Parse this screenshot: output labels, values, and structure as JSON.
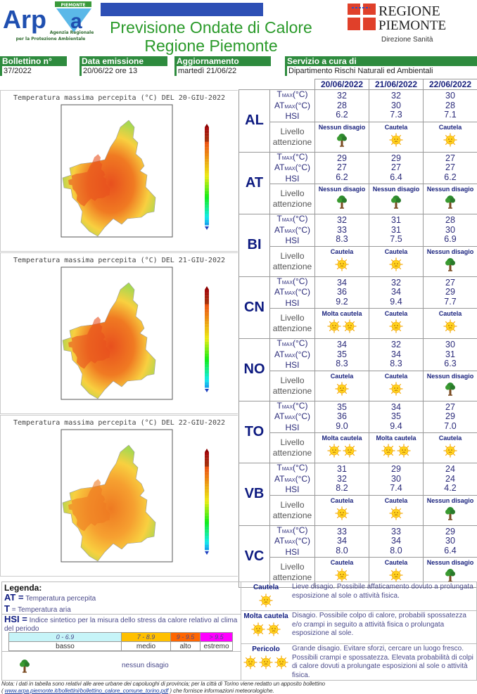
{
  "header": {
    "logo_left": "Arpa Piemonte - Agenzia Regionale per la Protezione Ambientale",
    "title_line1": "Previsione Ondate di Calore",
    "title_line2": "Regione Piemonte",
    "logo_right": "REGIONE PIEMONTE",
    "subtitle_right": "Direzione Sanità"
  },
  "info": [
    {
      "label": "Bollettino n°",
      "value": "37/2022"
    },
    {
      "label": "Data emissione",
      "value": "20/06/22 ore 13"
    },
    {
      "label": "Aggiornamento",
      "value": "martedì 21/06/22"
    },
    {
      "label": "Servizio a cura di",
      "value": "Dipartimento Rischi Naturali ed Ambientali"
    }
  ],
  "maps": [
    {
      "title": "Temperatura massima percepita (°C) DEL 20-GIU-2022",
      "intensity": 0.75
    },
    {
      "title": "Temperatura massima percepita (°C) DEL 21-GIU-2022",
      "intensity": 0.7
    },
    {
      "title": "Temperatura massima percepita (°C) DEL 22-GIU-2022",
      "intensity": 0.45
    }
  ],
  "table": {
    "dates": [
      "20/06/2022",
      "21/06/2022",
      "22/06/2022"
    ],
    "row_labels": {
      "tmax": "T",
      "tmax_sub": "MAX",
      "unit": "(°C)",
      "atmax": "AT",
      "hsi": "HSI",
      "livello": "Livello attenzione"
    },
    "provinces": [
      {
        "code": "AL",
        "tmax": [
          "32",
          "32",
          "30"
        ],
        "atmax": [
          "28",
          "30",
          "28"
        ],
        "hsi": [
          "6.2",
          "7.3",
          "7.1"
        ],
        "level": [
          "Nessun disagio",
          "Cautela",
          "Cautela"
        ]
      },
      {
        "code": "AT",
        "tmax": [
          "29",
          "29",
          "27"
        ],
        "atmax": [
          "27",
          "27",
          "27"
        ],
        "hsi": [
          "6.2",
          "6.4",
          "6.2"
        ],
        "level": [
          "Nessun disagio",
          "Nessun disagio",
          "Nessun disagio"
        ]
      },
      {
        "code": "BI",
        "tmax": [
          "32",
          "31",
          "28"
        ],
        "atmax": [
          "33",
          "31",
          "30"
        ],
        "hsi": [
          "8.3",
          "7.5",
          "6.9"
        ],
        "level": [
          "Cautela",
          "Cautela",
          "Nessun disagio"
        ]
      },
      {
        "code": "CN",
        "tmax": [
          "34",
          "32",
          "27"
        ],
        "atmax": [
          "36",
          "34",
          "29"
        ],
        "hsi": [
          "9.2",
          "9.4",
          "7.7"
        ],
        "level": [
          "Molta cautela",
          "Cautela",
          "Cautela"
        ]
      },
      {
        "code": "NO",
        "tmax": [
          "34",
          "32",
          "30"
        ],
        "atmax": [
          "35",
          "34",
          "31"
        ],
        "hsi": [
          "8.3",
          "8.3",
          "6.3"
        ],
        "level": [
          "Cautela",
          "Cautela",
          "Nessun disagio"
        ]
      },
      {
        "code": "TO",
        "tmax": [
          "35",
          "34",
          "27"
        ],
        "atmax": [
          "36",
          "35",
          "29"
        ],
        "hsi": [
          "9.0",
          "9.4",
          "7.0"
        ],
        "level": [
          "Molta cautela",
          "Molta cautela",
          "Cautela"
        ]
      },
      {
        "code": "VB",
        "tmax": [
          "31",
          "29",
          "24"
        ],
        "atmax": [
          "32",
          "30",
          "24"
        ],
        "hsi": [
          "8.2",
          "7.4",
          "4.2"
        ],
        "level": [
          "Cautela",
          "Cautela",
          "Nessun disagio"
        ]
      },
      {
        "code": "VC",
        "tmax": [
          "33",
          "33",
          "29"
        ],
        "atmax": [
          "34",
          "34",
          "30"
        ],
        "hsi": [
          "8.0",
          "8.0",
          "6.4"
        ],
        "level": [
          "Cautela",
          "Cautela",
          "Nessun disagio"
        ]
      }
    ]
  },
  "legend": {
    "title": "Legenda:",
    "at_key": "AT =",
    "at_desc": "Temperatura percepita",
    "t_key": "T",
    "t_desc": "= Temperatura aria",
    "hsi_key": "HSI =",
    "hsi_desc": "Indice sintetico per la misura dello stress da calore relativo al clima del periodo",
    "hsi_scale": [
      {
        "range": "0 - 6.9",
        "label": "basso",
        "color": "#c6f4f8"
      },
      {
        "range": "7 - 8.9",
        "label": "medio",
        "color": "#ffc000"
      },
      {
        "range": "9 - 9.5",
        "label": "alto",
        "color": "#ff6600"
      },
      {
        "range": "> 9.5",
        "label": "estremo",
        "color": "#ff00ff"
      }
    ],
    "nessun": "nessun disagio",
    "levels": [
      {
        "name": "Cautela",
        "suns": 1,
        "desc": "Lieve disagio. Possibile affaticamento dovuto a prolungata esposizione al sole o attività fisica."
      },
      {
        "name": "Molta cautela",
        "suns": 2,
        "desc": "Disagio. Possibile colpo di calore, probabili spossatezza e/o crampi in seguito a  attività fisica o prolungata esposizione al sole."
      },
      {
        "name": "Pericolo",
        "suns": 3,
        "desc": "Grande disagio. Evitare sforzi, cercare un luogo fresco. Possibili crampi e spossatezza. Elevata probabilità di colpi di calore dovuti a prolungate esposizioni al sole o attività fisica."
      }
    ]
  },
  "note": {
    "text1": "Nota: i dati in tabella sono relativi alle aree urbane dei capoluoghi di provincia; per la città di Torino viene redatto un apposito bollettino",
    "open": "(",
    "link": "www.arpa.piemonte.it/bollettini/bollettino_calore_comune_torino.pdf",
    "text2": ") che fornisce informazioni meteorologiche."
  },
  "colors": {
    "green": "#2e8b3e",
    "navy": "#0d1a80",
    "title_green": "#2a9a2a"
  }
}
